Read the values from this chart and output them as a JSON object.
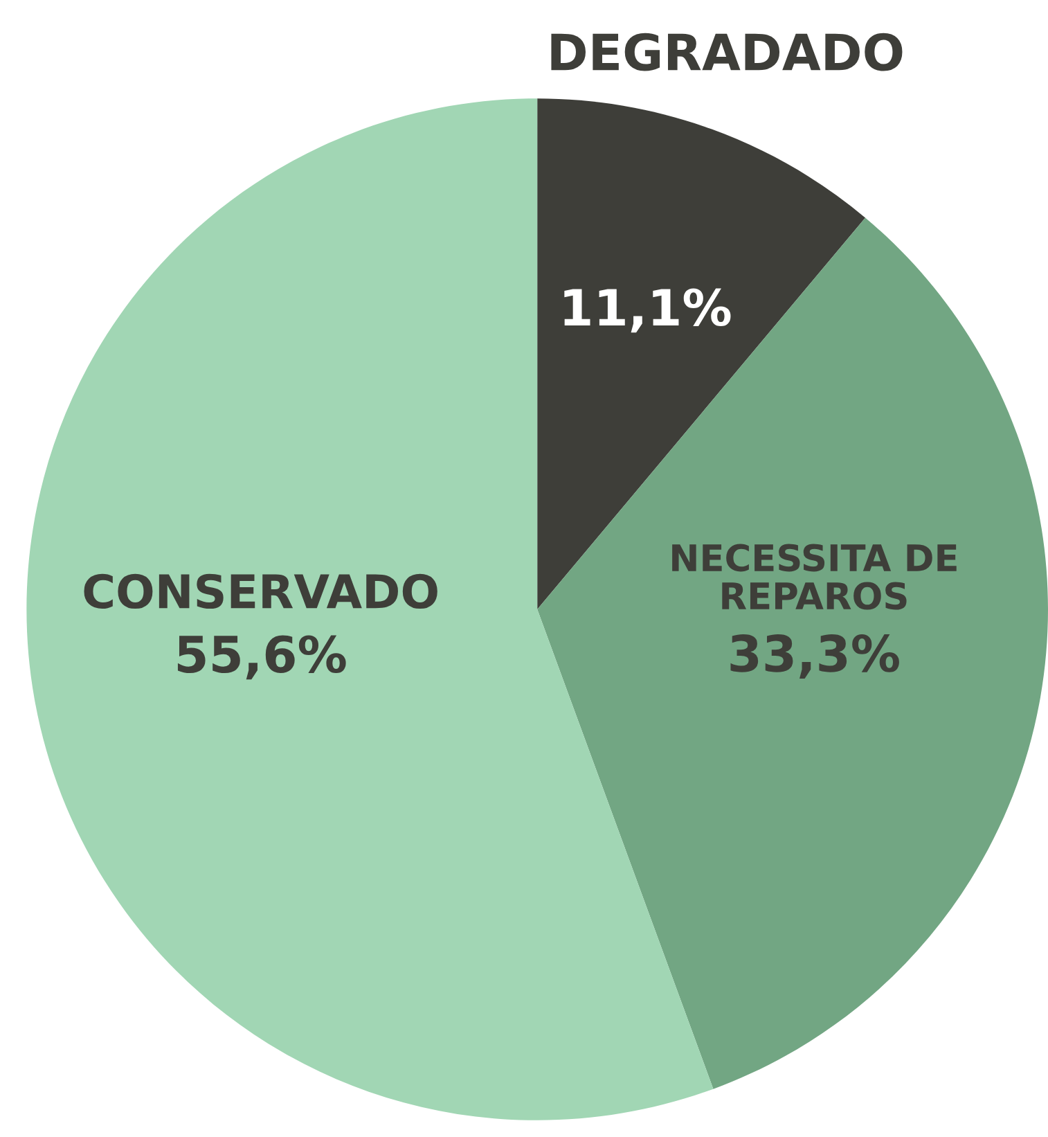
{
  "chart_data": {
    "type": "pie",
    "categories": [
      "DEGRADADO",
      "NECESSITA DE REPAROS",
      "CONSERVADO"
    ],
    "values": [
      11.1,
      33.3,
      55.6
    ],
    "colors": [
      "#3e3e39",
      "#72a683",
      "#a1d6b4"
    ],
    "value_labels": [
      "11,1%",
      "33,3%",
      "55,6%"
    ]
  }
}
